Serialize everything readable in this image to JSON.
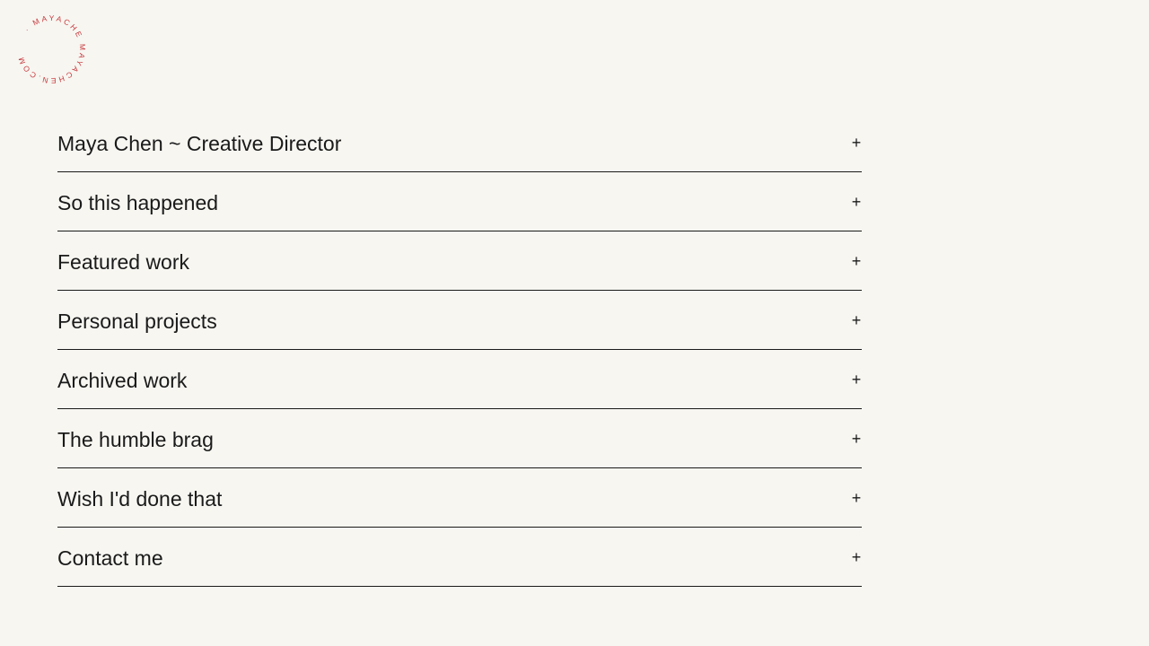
{
  "logo": {
    "text": "· MAYACHE MAYACHEN.COM",
    "color": "#c8383c"
  },
  "menu": {
    "items": [
      {
        "label": "Maya Chen ~ Creative Director",
        "icon": "plus-icon",
        "expand": "+"
      },
      {
        "label": "So this happened",
        "icon": "plus-icon",
        "expand": "+"
      },
      {
        "label": "Featured work",
        "icon": "plus-icon",
        "expand": "+"
      },
      {
        "label": "Personal projects",
        "icon": "plus-icon",
        "expand": "+"
      },
      {
        "label": "Archived work",
        "icon": "plus-icon",
        "expand": "+"
      },
      {
        "label": "The humble brag",
        "icon": "plus-icon",
        "expand": "+"
      },
      {
        "label": "Wish I'd done that",
        "icon": "plus-icon",
        "expand": "+"
      },
      {
        "label": "Contact me",
        "icon": "plus-icon",
        "expand": "+"
      }
    ]
  }
}
